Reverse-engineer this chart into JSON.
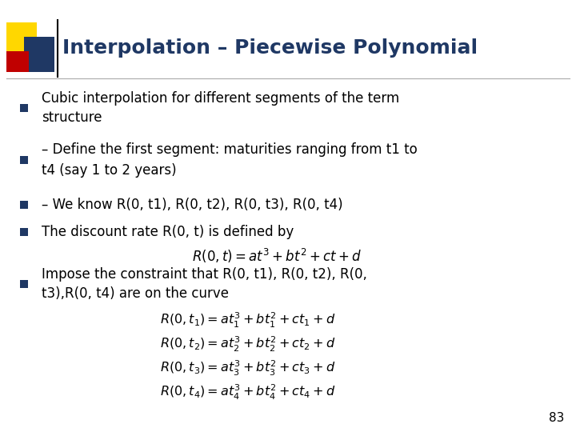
{
  "title": "Interpolation – Piecewise Polynomial",
  "title_color": "#1F3864",
  "title_fontsize": 18,
  "background_color": "#FFFFFF",
  "accent_yellow": "#FFD700",
  "accent_blue": "#1F3864",
  "accent_red": "#C00000",
  "bullet_color": "#1F3864",
  "text_color": "#000000",
  "page_number": "83",
  "bullets": [
    "Cubic interpolation for different segments of the term\nstructure",
    "– Define the first segment: maturities ranging from t1 to\nt4 (say 1 to 2 years)",
    "– We know R(0, t1), R(0, t2), R(0, t3), R(0, t4)",
    "The discount rate R(0, t) is defined by"
  ],
  "last_bullet": "Impose the constraint that R(0, t1), R(0, t2), R(0,\nt3),R(0, t4) are on the curve",
  "formula_inline": "$R(0,t) = at^3 + bt^2 + ct + d$",
  "formulas": [
    "$R(0,t_1) = at_1^3 + bt_1^2 + ct_1 + d$",
    "$R(0,t_2) = at_2^3 + bt_2^2 + ct_2 + d$",
    "$R(0,t_3) = at_3^3 + bt_3^2 + ct_3 + d$",
    "$R(0,t_4) = at_4^3 + bt_4^2 + ct_4 + d$"
  ]
}
